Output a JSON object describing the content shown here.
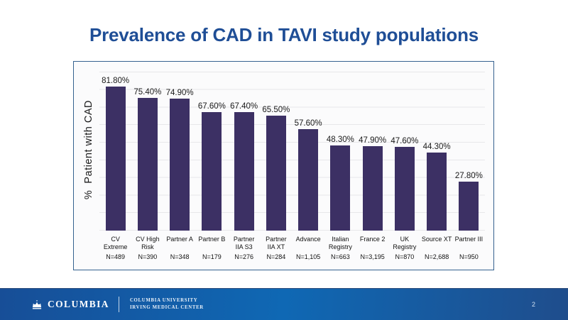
{
  "slide": {
    "title": "Prevalence of CAD in TAVI study populations",
    "page_number": "2"
  },
  "chart_data": {
    "type": "bar",
    "title": "",
    "xlabel": "",
    "ylabel": "%  Patient with CAD",
    "ylim": [
      0,
      92
    ],
    "grid": "horizontal-light",
    "legend": "none",
    "bar_color": "#3c3064",
    "categories": [
      "CV Extreme",
      "CV High Risk",
      "Partner A",
      "Partner B",
      "Partner IIA S3",
      "Partner IIA XT",
      "Advance",
      "Italian Registry",
      "France 2",
      "UK Registry",
      "Source XT",
      "Partner III"
    ],
    "categories_display": [
      "CV\nExtreme",
      "CV High\nRisk",
      "Partner A",
      "Partner B",
      "Partner\nIIA S3",
      "Partner\nIIA XT",
      "Advance",
      "Italian\nRegistry",
      "France 2",
      "UK\nRegistry",
      "Source XT",
      "Partner III"
    ],
    "n_labels": [
      "N=489",
      "N=390",
      "N=348",
      "N=179",
      "N=276",
      "N=284",
      "N=1,105",
      "N=663",
      "N=3,195",
      "N=870",
      "N=2,688",
      "N=950"
    ],
    "values": [
      81.8,
      75.4,
      74.9,
      67.6,
      67.4,
      65.5,
      57.6,
      48.3,
      47.9,
      47.6,
      44.3,
      27.8
    ],
    "value_labels": [
      "81.80%",
      "75.40%",
      "74.90%",
      "67.60%",
      "67.40%",
      "65.50%",
      "57.60%",
      "48.30%",
      "47.90%",
      "47.60%",
      "44.30%",
      "27.80%"
    ]
  },
  "footer": {
    "wordmark": "COLUMBIA",
    "org_line1": "COLUMBIA UNIVERSITY",
    "org_line2": "IRVING MEDICAL CENTER"
  },
  "colors": {
    "title_text": "#1f4e96",
    "bar_fill": "#3c3064",
    "chart_border": "#35618f",
    "gridline": "#e7e7ea",
    "footer_left": "#174e97",
    "footer_mid": "#0f68b4",
    "footer_right": "#1f4d8c",
    "footer_text": "#ffffff"
  }
}
